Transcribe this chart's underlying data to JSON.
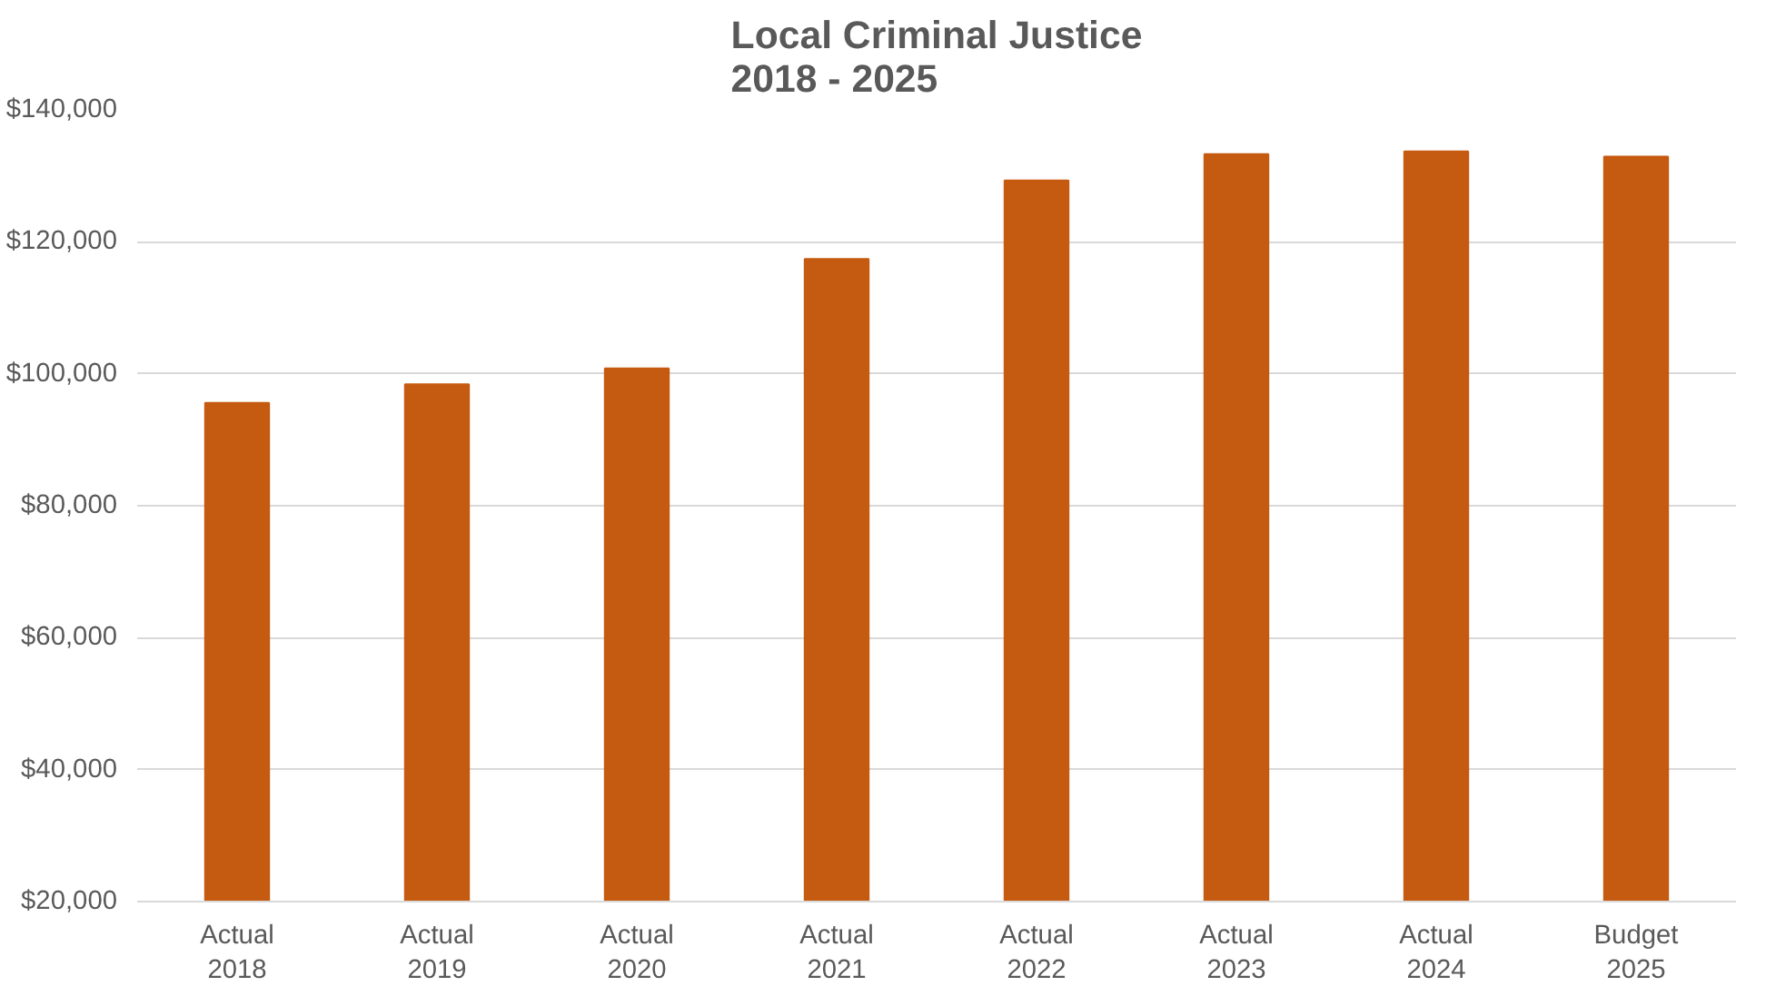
{
  "chart_data": {
    "type": "bar",
    "title": "Local Criminal Justice\n2018 - 2025",
    "categories": [
      "Actual\n2018",
      "Actual\n2019",
      "Actual\n2020",
      "Actual\n2021",
      "Actual\n2022",
      "Actual\n2023",
      "Actual\n2024",
      "Budget\n2025"
    ],
    "values": [
      95600,
      98400,
      100800,
      117400,
      129300,
      133300,
      133700,
      132900
    ],
    "color": "#c55a11",
    "ylim": [
      20000,
      140000
    ],
    "yticks": [
      {
        "value": 20000,
        "label": "$20,000"
      },
      {
        "value": 40000,
        "label": "$40,000"
      },
      {
        "value": 60000,
        "label": "$60,000"
      },
      {
        "value": 80000,
        "label": "$80,000"
      },
      {
        "value": 100000,
        "label": "$100,000"
      },
      {
        "value": 120000,
        "label": "$120,000"
      },
      {
        "value": 140000,
        "label": "$140,000"
      }
    ],
    "grid": "y"
  }
}
